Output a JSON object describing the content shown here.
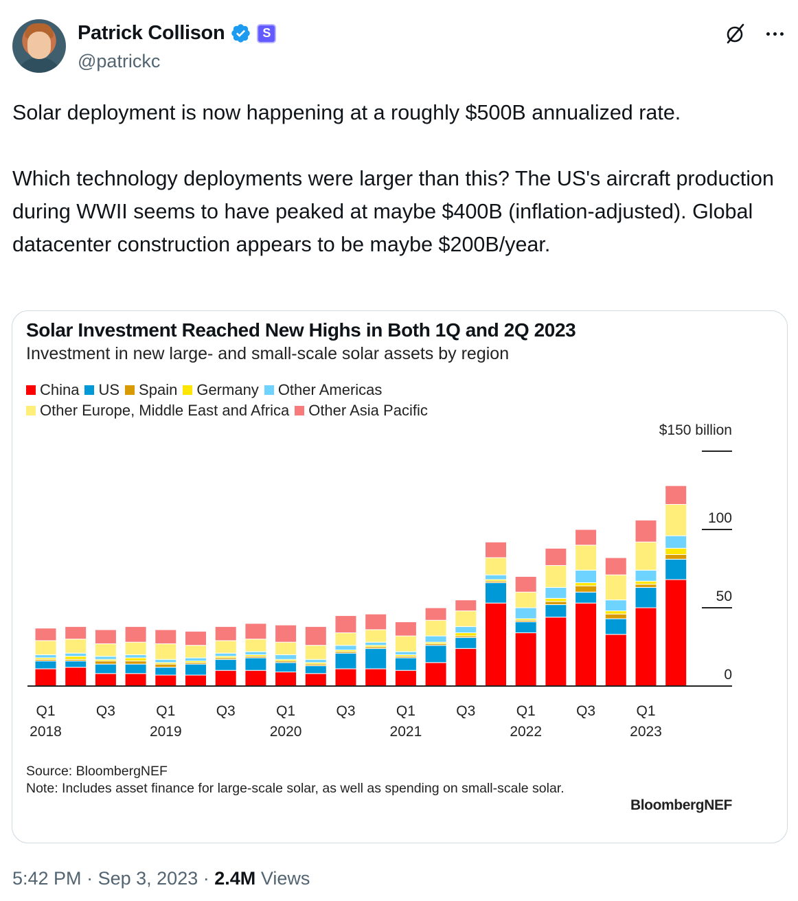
{
  "author": {
    "display_name": "Patrick Collison",
    "handle": "@patrickc",
    "affiliate_badge": "S"
  },
  "tweet": {
    "paragraph1": "Solar deployment is now happening at a roughly $500B annualized rate.",
    "paragraph2": "Which technology deployments were larger than this? The US's aircraft production during WWII seems to have peaked at maybe $400B (inflation-adjusted). Global datacenter construction appears to be maybe $200B/year."
  },
  "meta": {
    "time": "5:42 PM",
    "date": "Sep 3, 2023",
    "views_count": "2.4M",
    "views_label": "Views",
    "separator": "·"
  },
  "chart_card": {
    "source_line": "Source: BloombergNEF",
    "note_line": "Note: Includes asset finance for large-scale solar, as well as spending on small-scale solar.",
    "brand": "BloombergNEF"
  },
  "chart_data": {
    "type": "bar",
    "stacked": true,
    "title": "Solar Investment Reached New Highs in Both 1Q and 2Q 2023",
    "subtitle": "Investment in new large- and small-scale solar assets by region",
    "y_unit_label": "$150 billion",
    "ylim": [
      0,
      150
    ],
    "y_ticks": [
      {
        "value": 150,
        "label": ""
      },
      {
        "value": 100,
        "label": "100"
      },
      {
        "value": 50,
        "label": "50"
      },
      {
        "value": 0,
        "label": "0"
      }
    ],
    "x_labels": [
      {
        "index": 0,
        "quarter": "Q1",
        "year": "2018"
      },
      {
        "index": 2,
        "quarter": "Q3",
        "year": ""
      },
      {
        "index": 4,
        "quarter": "Q1",
        "year": "2019"
      },
      {
        "index": 6,
        "quarter": "Q3",
        "year": ""
      },
      {
        "index": 8,
        "quarter": "Q1",
        "year": "2020"
      },
      {
        "index": 10,
        "quarter": "Q3",
        "year": ""
      },
      {
        "index": 12,
        "quarter": "Q1",
        "year": "2021"
      },
      {
        "index": 14,
        "quarter": "Q3",
        "year": ""
      },
      {
        "index": 16,
        "quarter": "Q1",
        "year": "2022"
      },
      {
        "index": 18,
        "quarter": "Q3",
        "year": ""
      },
      {
        "index": 20,
        "quarter": "Q1",
        "year": "2023"
      }
    ],
    "categories": [
      "1Q18",
      "2Q18",
      "3Q18",
      "4Q18",
      "1Q19",
      "2Q19",
      "3Q19",
      "4Q19",
      "1Q20",
      "2Q20",
      "3Q20",
      "4Q20",
      "1Q21",
      "2Q21",
      "3Q21",
      "4Q21",
      "1Q22",
      "2Q22",
      "3Q22",
      "4Q22",
      "1Q23",
      "2Q23"
    ],
    "series": [
      {
        "name": "China",
        "color": "#ff0000",
        "values": [
          11,
          12,
          8,
          8,
          7,
          7,
          10,
          10,
          9,
          8,
          11,
          11,
          10,
          15,
          24,
          53,
          34,
          44,
          53,
          33,
          50,
          68
        ]
      },
      {
        "name": "US",
        "color": "#0099d8",
        "values": [
          5,
          4,
          6,
          6,
          5,
          7,
          7,
          8,
          6,
          5,
          10,
          13,
          8,
          11,
          7,
          13,
          7,
          8,
          7,
          10,
          13,
          13
        ]
      },
      {
        "name": "Spain",
        "color": "#d89a00",
        "values": [
          1,
          1,
          2,
          2,
          2,
          1,
          1,
          1,
          1,
          1,
          1,
          1,
          1,
          1,
          1,
          1,
          1,
          2,
          4,
          3,
          2,
          3
        ]
      },
      {
        "name": "Germany",
        "color": "#ffe600",
        "values": [
          1,
          2,
          1,
          2,
          1,
          1,
          1,
          1,
          1,
          1,
          1,
          1,
          1,
          1,
          2,
          1,
          1,
          2,
          2,
          2,
          2,
          4
        ]
      },
      {
        "name": "Other Americas",
        "color": "#6fd3ff",
        "values": [
          2,
          2,
          2,
          2,
          2,
          2,
          2,
          2,
          3,
          2,
          3,
          2,
          2,
          4,
          4,
          3,
          7,
          7,
          8,
          7,
          7,
          8
        ]
      },
      {
        "name": "Other Europe, Middle East and Africa",
        "color": "#ffee7a",
        "values": [
          9,
          9,
          8,
          8,
          10,
          8,
          8,
          8,
          8,
          9,
          8,
          8,
          10,
          10,
          10,
          11,
          10,
          14,
          16,
          16,
          18,
          20
        ]
      },
      {
        "name": "Other Asia Pacific",
        "color": "#f77b7b",
        "values": [
          8,
          8,
          9,
          10,
          9,
          9,
          9,
          10,
          11,
          12,
          11,
          10,
          9,
          8,
          7,
          10,
          10,
          11,
          10,
          11,
          14,
          12
        ]
      }
    ]
  }
}
